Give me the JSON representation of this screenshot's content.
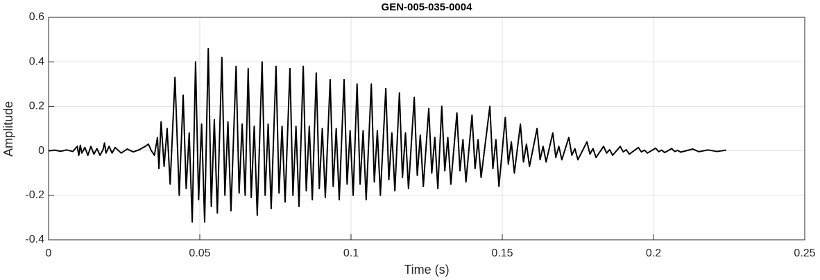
{
  "chart_data": {
    "type": "line",
    "title": "GEN-005-035-0004",
    "xlabel": "Time (s)",
    "ylabel": "Amplitude",
    "color": "#000000",
    "grid": true,
    "xlim": [
      0,
      0.25
    ],
    "ylim": [
      -0.4,
      0.6
    ],
    "xticks": [
      0,
      0.05,
      0.1,
      0.15,
      0.2,
      0.25
    ],
    "yticks": [
      -0.4,
      -0.2,
      0,
      0.2,
      0.4,
      0.6
    ],
    "x": [
      0,
      0.002,
      0.004,
      0.006,
      0.008,
      0.0095,
      0.01,
      0.0105,
      0.011,
      0.012,
      0.013,
      0.014,
      0.015,
      0.016,
      0.017,
      0.018,
      0.0185,
      0.019,
      0.02,
      0.021,
      0.022,
      0.024,
      0.026,
      0.028,
      0.03,
      0.032,
      0.033,
      0.034,
      0.035,
      0.036,
      0.0365,
      0.0372,
      0.0382,
      0.0392,
      0.0402,
      0.0418,
      0.0432,
      0.0445,
      0.0455,
      0.0465,
      0.0475,
      0.0486,
      0.0496,
      0.0506,
      0.0516,
      0.0528,
      0.0538,
      0.0548,
      0.0558,
      0.0573,
      0.0583,
      0.0593,
      0.0603,
      0.062,
      0.063,
      0.064,
      0.065,
      0.066,
      0.067,
      0.068,
      0.069,
      0.0706,
      0.0716,
      0.0726,
      0.0736,
      0.0752,
      0.0762,
      0.0772,
      0.0782,
      0.0798,
      0.0808,
      0.0818,
      0.0828,
      0.0842,
      0.0852,
      0.0862,
      0.0872,
      0.0885,
      0.0895,
      0.0905,
      0.0915,
      0.0931,
      0.0941,
      0.0951,
      0.0961,
      0.0977,
      0.0987,
      0.0997,
      0.1007,
      0.102,
      0.103,
      0.104,
      0.105,
      0.1067,
      0.1077,
      0.1087,
      0.1097,
      0.1115,
      0.1125,
      0.1135,
      0.1145,
      0.116,
      0.117,
      0.118,
      0.119,
      0.1209,
      0.1219,
      0.1229,
      0.1239,
      0.1257,
      0.1267,
      0.1277,
      0.1287,
      0.13,
      0.131,
      0.132,
      0.133,
      0.135,
      0.136,
      0.137,
      0.138,
      0.14,
      0.141,
      0.142,
      0.143,
      0.1459,
      0.1469,
      0.1479,
      0.1489,
      0.151,
      0.152,
      0.153,
      0.154,
      0.156,
      0.157,
      0.158,
      0.159,
      0.1615,
      0.1625,
      0.1635,
      0.1645,
      0.1667,
      0.1677,
      0.1687,
      0.1697,
      0.172,
      0.173,
      0.174,
      0.175,
      0.178,
      0.179,
      0.18,
      0.181,
      0.1835,
      0.1845,
      0.1855,
      0.1865,
      0.189,
      0.19,
      0.191,
      0.192,
      0.195,
      0.196,
      0.197,
      0.198,
      0.2007,
      0.2017,
      0.2027,
      0.2037,
      0.206,
      0.207,
      0.208,
      0.209,
      0.213,
      0.215,
      0.218,
      0.221,
      0.224
    ],
    "values": [
      0,
      0.003,
      -0.002,
      0.004,
      -0.003,
      0.02,
      -0.02,
      0.025,
      -0.01,
      0.015,
      -0.02,
      0.02,
      -0.015,
      0.01,
      -0.02,
      0.005,
      0.035,
      -0.01,
      0.02,
      -0.01,
      0.015,
      -0.01,
      0.008,
      -0.005,
      0.005,
      0.02,
      0.03,
      0,
      -0.02,
      0.06,
      -0.08,
      0.13,
      -0.07,
      0.1,
      -0.15,
      0.33,
      -0.2,
      0.25,
      -0.17,
      0.08,
      -0.32,
      0.4,
      -0.22,
      0.12,
      -0.32,
      0.46,
      -0.25,
      0.14,
      -0.28,
      0.42,
      -0.2,
      0.13,
      -0.27,
      0.38,
      -0.19,
      0.12,
      -0.2,
      0.37,
      -0.21,
      0.11,
      -0.29,
      0.4,
      -0.2,
      0.12,
      -0.26,
      0.38,
      -0.19,
      0.11,
      -0.23,
      0.37,
      -0.2,
      0.11,
      -0.25,
      0.38,
      -0.18,
      0.11,
      -0.22,
      0.35,
      -0.17,
      0.1,
      -0.21,
      0.32,
      -0.16,
      0.1,
      -0.22,
      0.32,
      -0.15,
      0.09,
      -0.2,
      0.3,
      -0.15,
      0.09,
      -0.22,
      0.3,
      -0.14,
      0.09,
      -0.2,
      0.28,
      -0.13,
      0.08,
      -0.18,
      0.26,
      -0.12,
      0.08,
      -0.17,
      0.24,
      -0.11,
      0.07,
      -0.16,
      0.19,
      -0.1,
      0.06,
      -0.17,
      0.2,
      -0.09,
      0.06,
      -0.15,
      0.17,
      -0.09,
      0.05,
      -0.14,
      0.16,
      -0.08,
      0.05,
      -0.12,
      0.2,
      -0.08,
      0.05,
      -0.16,
      0.15,
      -0.06,
      0.04,
      -0.1,
      0.12,
      -0.05,
      0.03,
      -0.07,
      0.1,
      -0.04,
      0.02,
      -0.05,
      0.08,
      -0.03,
      0.02,
      -0.04,
      0.06,
      -0.02,
      0.01,
      -0.04,
      0.04,
      -0.015,
      0.01,
      -0.03,
      0.02,
      -0.01,
      0.005,
      -0.02,
      0.02,
      -0.005,
      0.005,
      -0.015,
      0.015,
      -0.005,
      0.003,
      -0.01,
      0.012,
      -0.004,
      0.003,
      -0.008,
      0.01,
      -0.003,
      0.002,
      -0.006,
      0.008,
      -0.004,
      0.004,
      -0.003,
      0.003
    ]
  }
}
